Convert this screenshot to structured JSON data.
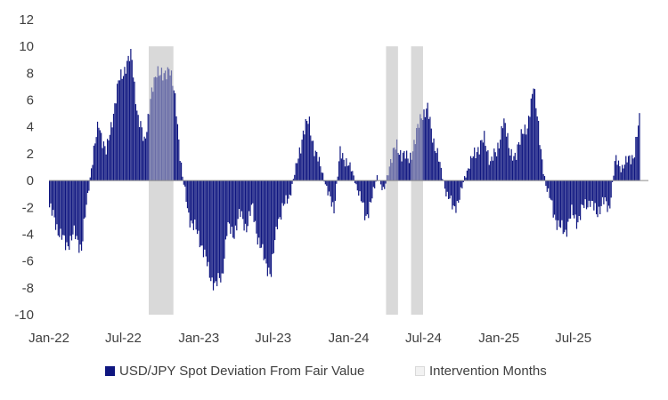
{
  "chart_data": {
    "type": "bar",
    "title": "",
    "xlabel": "",
    "ylabel": "",
    "ylim": [
      -10,
      12
    ],
    "yticks": [
      -10,
      -8,
      -6,
      -4,
      -2,
      0,
      2,
      4,
      6,
      8,
      10,
      12
    ],
    "x_range": [
      "2022-01-01",
      "2025-12-31"
    ],
    "x_tick_labels": [
      "Jan-22",
      "Jul-22",
      "Jan-23",
      "Jul-23",
      "Jan-24",
      "Jul-24",
      "Jan-25",
      "Jul-25"
    ],
    "x_tick_dates": [
      "2022-01-01",
      "2022-07-01",
      "2023-01-01",
      "2023-07-01",
      "2024-01-01",
      "2024-07-01",
      "2025-01-01",
      "2025-07-01"
    ],
    "grid": false,
    "legend_position": "bottom",
    "series": [
      {
        "name": "USD/JPY Spot Deviation From Fair Value",
        "color": "#0f1680",
        "type": "bar",
        "points": [
          [
            "2022-01-01",
            -2.0
          ],
          [
            "2022-01-20",
            -3.5
          ],
          [
            "2022-02-10",
            -4.9
          ],
          [
            "2022-03-01",
            -4.0
          ],
          [
            "2022-03-20",
            -5.0
          ],
          [
            "2022-04-05",
            -1.0
          ],
          [
            "2022-04-15",
            1.5
          ],
          [
            "2022-05-01",
            4.2
          ],
          [
            "2022-05-20",
            2.0
          ],
          [
            "2022-06-05",
            5.0
          ],
          [
            "2022-06-20",
            7.5
          ],
          [
            "2022-07-05",
            8.5
          ],
          [
            "2022-07-20",
            9.3
          ],
          [
            "2022-08-05",
            4.5
          ],
          [
            "2022-08-20",
            3.0
          ],
          [
            "2022-09-05",
            6.0
          ],
          [
            "2022-09-20",
            8.5
          ],
          [
            "2022-10-05",
            7.5
          ],
          [
            "2022-10-20",
            8.7
          ],
          [
            "2022-11-05",
            5.5
          ],
          [
            "2022-11-20",
            0.5
          ],
          [
            "2022-12-05",
            -2.5
          ],
          [
            "2022-12-20",
            -3.5
          ],
          [
            "2023-01-10",
            -5.0
          ],
          [
            "2023-01-25",
            -7.0
          ],
          [
            "2023-02-10",
            -7.8
          ],
          [
            "2023-02-25",
            -7.2
          ],
          [
            "2023-03-10",
            -3.5
          ],
          [
            "2023-03-25",
            -4.0
          ],
          [
            "2023-04-10",
            -2.5
          ],
          [
            "2023-04-25",
            -3.5
          ],
          [
            "2023-05-10",
            -2.0
          ],
          [
            "2023-05-25",
            -4.5
          ],
          [
            "2023-06-10",
            -6.0
          ],
          [
            "2023-06-25",
            -7.0
          ],
          [
            "2023-07-10",
            -3.0
          ],
          [
            "2023-07-25",
            -2.0
          ],
          [
            "2023-08-10",
            -1.0
          ],
          [
            "2023-08-25",
            1.0
          ],
          [
            "2023-09-10",
            3.5
          ],
          [
            "2023-09-25",
            4.5
          ],
          [
            "2023-10-10",
            2.0
          ],
          [
            "2023-10-25",
            1.0
          ],
          [
            "2023-11-10",
            -1.0
          ],
          [
            "2023-11-25",
            -2.0
          ],
          [
            "2023-12-10",
            2.0
          ],
          [
            "2023-12-25",
            1.5
          ],
          [
            "2024-01-10",
            0.5
          ],
          [
            "2024-01-25",
            -1.0
          ],
          [
            "2024-02-10",
            -2.7
          ],
          [
            "2024-02-25",
            -1.5
          ],
          [
            "2024-03-10",
            0.5
          ],
          [
            "2024-03-25",
            -1.0
          ],
          [
            "2024-04-10",
            1.5
          ],
          [
            "2024-04-25",
            2.5
          ],
          [
            "2024-05-10",
            2.0
          ],
          [
            "2024-05-25",
            1.5
          ],
          [
            "2024-06-10",
            3.0
          ],
          [
            "2024-06-25",
            5.0
          ],
          [
            "2024-07-10",
            5.2
          ],
          [
            "2024-07-25",
            3.0
          ],
          [
            "2024-08-10",
            1.0
          ],
          [
            "2024-08-25",
            -1.0
          ],
          [
            "2024-09-10",
            -2.0
          ],
          [
            "2024-09-25",
            -1.5
          ],
          [
            "2024-10-10",
            0.5
          ],
          [
            "2024-10-25",
            1.5
          ],
          [
            "2024-11-10",
            2.5
          ],
          [
            "2024-11-25",
            3.0
          ],
          [
            "2024-12-10",
            1.5
          ],
          [
            "2024-12-25",
            2.0
          ],
          [
            "2025-01-10",
            4.5
          ],
          [
            "2025-01-25",
            2.5
          ],
          [
            "2025-02-10",
            1.5
          ],
          [
            "2025-02-25",
            4.0
          ],
          [
            "2025-03-10",
            3.5
          ],
          [
            "2025-03-25",
            7.5
          ],
          [
            "2025-04-10",
            2.5
          ],
          [
            "2025-04-25",
            -0.5
          ],
          [
            "2025-05-10",
            -2.0
          ],
          [
            "2025-05-25",
            -3.5
          ],
          [
            "2025-06-10",
            -3.8
          ],
          [
            "2025-06-25",
            -2.5
          ],
          [
            "2025-07-10",
            -3.0
          ],
          [
            "2025-07-25",
            -2.0
          ],
          [
            "2025-08-10",
            -1.5
          ],
          [
            "2025-08-25",
            -2.5
          ],
          [
            "2025-09-10",
            -1.5
          ],
          [
            "2025-09-25",
            -2.2
          ],
          [
            "2025-10-10",
            1.5
          ],
          [
            "2025-10-25",
            1.0
          ],
          [
            "2025-11-10",
            1.5
          ],
          [
            "2025-11-25",
            2.0
          ],
          [
            "2025-12-10",
            4.8
          ]
        ]
      },
      {
        "name": "Intervention Months",
        "color": "#d9d9d9",
        "type": "shaded_range",
        "ranges": [
          [
            "2022-09-01",
            "2022-10-31"
          ],
          [
            "2024-04-01",
            "2024-04-30"
          ],
          [
            "2024-06-01",
            "2024-06-30"
          ]
        ]
      }
    ]
  },
  "legend": {
    "deviation_label": "USD/JPY Spot Deviation From Fair Value",
    "intervention_label": "Intervention Months"
  }
}
